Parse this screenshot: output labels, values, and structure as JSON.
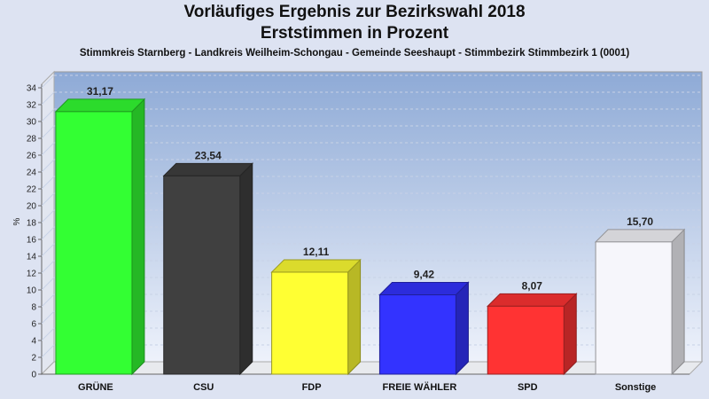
{
  "chart_data": {
    "type": "bar",
    "title": "Vorläufiges Ergebnis zur Bezirkswahl 2018",
    "title2": "Erststimmen in Prozent",
    "subtitle": "Stimmkreis Starnberg - Landkreis Weilheim-Schongau - Gemeinde Seeshaupt - Stimmbezirk Stimmbezirk 1 (0001)",
    "ylabel": "%",
    "xlabel": "",
    "ylim": [
      0,
      34
    ],
    "ytick_step": 2,
    "grid": true,
    "categories": [
      "GRÜNE",
      "CSU",
      "FDP",
      "FREIE WÄHLER",
      "SPD",
      "Sonstige"
    ],
    "values": [
      31.17,
      23.54,
      12.11,
      9.42,
      8.07,
      15.7
    ],
    "value_labels": [
      "31,17",
      "23,54",
      "12,11",
      "9,42",
      "8,07",
      "15,70"
    ],
    "colors": [
      "#33ff33",
      "#404040",
      "#ffff33",
      "#3333ff",
      "#ff3333",
      "#f6f6fb"
    ]
  }
}
